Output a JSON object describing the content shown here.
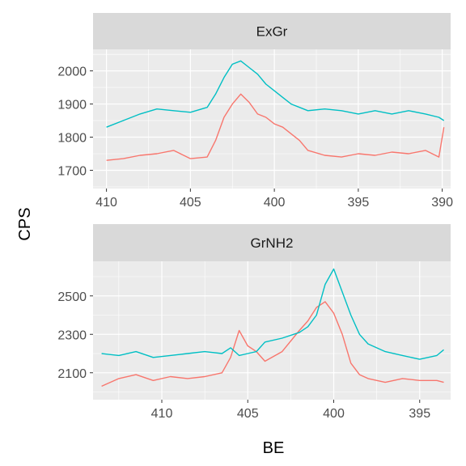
{
  "chart_data": {
    "type": "line",
    "xlabel": "BE",
    "ylabel": "CPS",
    "x_reversed": true,
    "grid": true,
    "legend": "none",
    "series_colors": [
      "#F8766D",
      "#00BFC4"
    ],
    "panels": [
      {
        "strip": "ExGr",
        "xlim": [
          389.5,
          410.8
        ],
        "xticks": [
          410,
          405,
          400,
          395,
          390
        ],
        "xtick_labels": [
          "410",
          "405",
          "400",
          "395",
          "390"
        ],
        "ylim": [
          1645,
          2065
        ],
        "yticks": [
          1700,
          1800,
          1900,
          2000
        ],
        "ytick_labels": [
          "1700",
          "1800",
          "1900",
          "2000"
        ],
        "series": [
          {
            "color": "#F8766D",
            "x": [
              410.0,
              409.0,
              408.0,
              407.0,
              406.0,
              405.0,
              404.0,
              403.5,
              403.0,
              402.5,
              402.0,
              401.5,
              401.0,
              400.5,
              400.0,
              399.5,
              399.0,
              398.5,
              398.0,
              397.0,
              396.0,
              395.0,
              394.0,
              393.0,
              392.0,
              391.0,
              390.2,
              389.9
            ],
            "y": [
              1730,
              1735,
              1745,
              1750,
              1760,
              1735,
              1740,
              1790,
              1860,
              1900,
              1930,
              1905,
              1870,
              1860,
              1840,
              1830,
              1810,
              1790,
              1760,
              1745,
              1740,
              1750,
              1745,
              1755,
              1750,
              1760,
              1740,
              1830
            ]
          },
          {
            "color": "#00BFC4",
            "x": [
              410.0,
              409.0,
              408.0,
              407.0,
              406.0,
              405.0,
              404.0,
              403.5,
              403.0,
              402.5,
              402.0,
              401.5,
              401.0,
              400.5,
              400.0,
              399.5,
              399.0,
              398.5,
              398.0,
              397.0,
              396.0,
              395.0,
              394.0,
              393.0,
              392.0,
              391.0,
              390.2,
              389.9
            ],
            "y": [
              1830,
              1850,
              1870,
              1885,
              1880,
              1875,
              1890,
              1930,
              1980,
              2020,
              2030,
              2010,
              1990,
              1960,
              1940,
              1920,
              1900,
              1890,
              1880,
              1885,
              1880,
              1870,
              1880,
              1870,
              1880,
              1870,
              1860,
              1850
            ]
          }
        ]
      },
      {
        "strip": "GrNH2",
        "xlim": [
          393.2,
          414.0
        ],
        "xticks": [
          410,
          405,
          400,
          395
        ],
        "xtick_labels": [
          "410",
          "405",
          "400",
          "395"
        ],
        "ylim": [
          1960,
          2680
        ],
        "yticks": [
          2100,
          2300,
          2500
        ],
        "ytick_labels": [
          "2100",
          "2300",
          "2500"
        ],
        "series": [
          {
            "color": "#F8766D",
            "x": [
              413.5,
              412.5,
              411.5,
              410.5,
              409.5,
              408.5,
              407.5,
              406.5,
              406.0,
              405.5,
              405.0,
              404.5,
              404.0,
              403.0,
              402.0,
              401.5,
              401.0,
              400.5,
              400.0,
              399.5,
              399.0,
              398.5,
              398.0,
              397.0,
              396.0,
              395.0,
              394.0,
              393.6
            ],
            "y": [
              2030,
              2070,
              2090,
              2060,
              2080,
              2070,
              2080,
              2100,
              2180,
              2320,
              2240,
              2210,
              2160,
              2210,
              2320,
              2370,
              2440,
              2470,
              2410,
              2300,
              2150,
              2090,
              2070,
              2050,
              2070,
              2060,
              2060,
              2050
            ]
          },
          {
            "color": "#00BFC4",
            "x": [
              413.5,
              412.5,
              411.5,
              410.5,
              409.5,
              408.5,
              407.5,
              406.5,
              406.0,
              405.5,
              405.0,
              404.5,
              404.0,
              403.0,
              402.0,
              401.5,
              401.0,
              400.5,
              400.0,
              399.5,
              399.0,
              398.5,
              398.0,
              397.0,
              396.0,
              395.0,
              394.0,
              393.6
            ],
            "y": [
              2200,
              2190,
              2210,
              2180,
              2190,
              2200,
              2210,
              2200,
              2230,
              2190,
              2200,
              2210,
              2260,
              2280,
              2310,
              2340,
              2400,
              2560,
              2640,
              2520,
              2400,
              2300,
              2250,
              2210,
              2190,
              2170,
              2190,
              2220
            ]
          }
        ]
      }
    ]
  }
}
